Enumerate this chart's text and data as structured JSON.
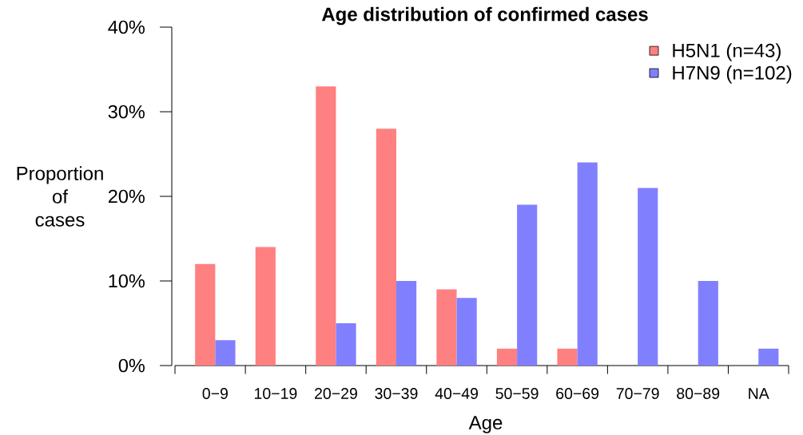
{
  "chart_data": {
    "type": "bar",
    "title": "Age distribution of confirmed cases",
    "xlabel": "Age",
    "ylabel": "Proportion of cases",
    "categories": [
      "0−9",
      "10−19",
      "20−29",
      "30−39",
      "40−49",
      "50−59",
      "60−69",
      "70−79",
      "80−89",
      "NA"
    ],
    "series": [
      {
        "name": "H5N1 (n=43)",
        "color": "#ff8080",
        "values": [
          12,
          14,
          33,
          28,
          9,
          2,
          2,
          0,
          0,
          0
        ]
      },
      {
        "name": "H7N9 (n=102)",
        "color": "#8080ff",
        "values": [
          3,
          0,
          5,
          10,
          8,
          19,
          24,
          21,
          10,
          2
        ]
      }
    ],
    "ylim": [
      0,
      40
    ],
    "yticks": [
      {
        "value": 0,
        "label": "0%"
      },
      {
        "value": 10,
        "label": "10%"
      },
      {
        "value": 20,
        "label": "20%"
      },
      {
        "value": 30,
        "label": "30%"
      },
      {
        "value": 40,
        "label": "40%"
      }
    ],
    "legend": "top right"
  }
}
